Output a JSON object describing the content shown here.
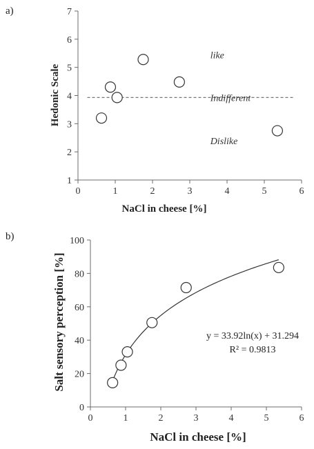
{
  "chart_data": [
    {
      "panel_label": "a)",
      "type": "scatter",
      "xlabel": "NaCl in cheese [%]",
      "ylabel": "Hedonic Scale",
      "xlim": [
        0,
        6
      ],
      "ylim": [
        1,
        7
      ],
      "xticks": [
        "0",
        "1",
        "2",
        "3",
        "4",
        "5",
        "6"
      ],
      "yticks": [
        "1",
        "2",
        "3",
        "4",
        "5",
        "6",
        "7"
      ],
      "grid": false,
      "points": [
        {
          "x": 0.63,
          "y": 3.2
        },
        {
          "x": 0.87,
          "y": 4.3
        },
        {
          "x": 1.05,
          "y": 3.93
        },
        {
          "x": 1.75,
          "y": 5.28
        },
        {
          "x": 2.72,
          "y": 4.48
        },
        {
          "x": 5.35,
          "y": 2.75
        }
      ],
      "reference_line": {
        "y": 3.93,
        "x_start": 0.25,
        "x_end": 5.8,
        "label": "Indifferent"
      },
      "annotations": [
        {
          "text": "like",
          "x": 3.55,
          "y": 5.45
        },
        {
          "text": "Indifferent",
          "x": 3.55,
          "y": 3.93
        },
        {
          "text": "Dislike",
          "x": 3.55,
          "y": 2.4
        }
      ]
    },
    {
      "panel_label": "b)",
      "type": "scatter",
      "xlabel": "NaCl in cheese [%]",
      "ylabel": "Salt sensory perception [%]",
      "xlim": [
        0,
        6
      ],
      "ylim": [
        0,
        100
      ],
      "xticks": [
        "0",
        "1",
        "2",
        "3",
        "4",
        "5",
        "6"
      ],
      "yticks": [
        "0",
        "20",
        "40",
        "60",
        "80",
        "100"
      ],
      "grid": false,
      "points": [
        {
          "x": 0.63,
          "y": 14.5
        },
        {
          "x": 0.87,
          "y": 25
        },
        {
          "x": 1.05,
          "y": 33
        },
        {
          "x": 1.75,
          "y": 50.5
        },
        {
          "x": 2.72,
          "y": 71.5
        },
        {
          "x": 5.35,
          "y": 83.5
        }
      ],
      "trendline": {
        "type": "log",
        "a": 33.92,
        "b": 31.294,
        "x_start": 0.63,
        "x_end": 5.35
      },
      "equation": "y = 33.92ln(x) + 31.294",
      "r_squared": "R² = 0.9813"
    }
  ]
}
